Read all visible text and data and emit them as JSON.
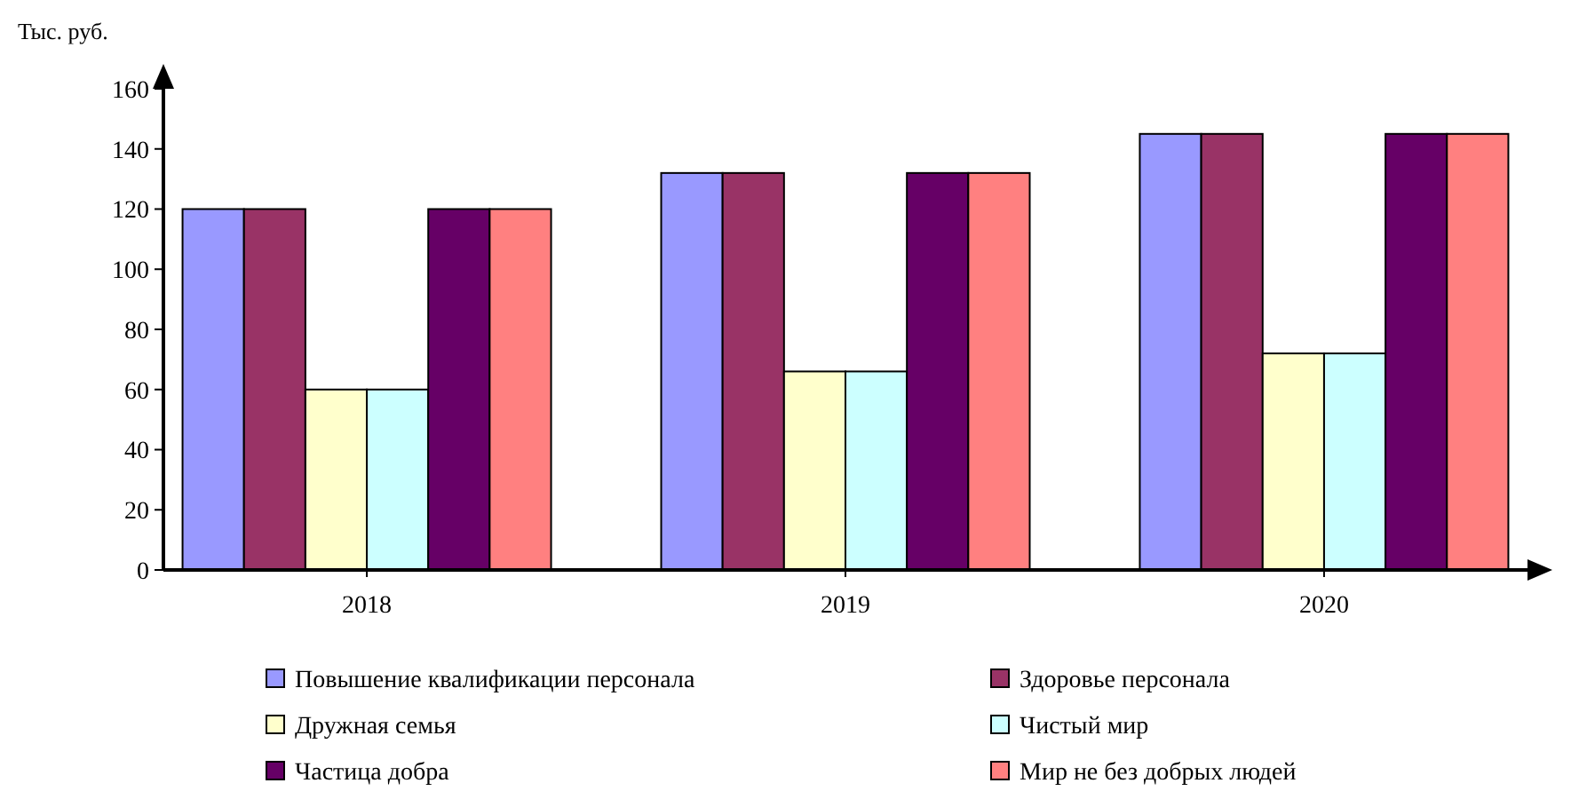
{
  "chart_data": {
    "type": "bar",
    "ylabel": "Тыс. руб.",
    "categories": [
      "2018",
      "2019",
      "2020"
    ],
    "series": [
      {
        "name": "Повышение квалификации персонала",
        "color": "#9999ff",
        "values": [
          120,
          132,
          145
        ]
      },
      {
        "name": "Здоровье персонала",
        "color": "#993366",
        "values": [
          120,
          132,
          145
        ]
      },
      {
        "name": "Дружная семья",
        "color": "#ffffcc",
        "values": [
          60,
          66,
          72
        ]
      },
      {
        "name": "Чистый мир",
        "color": "#ccffff",
        "values": [
          60,
          66,
          72
        ]
      },
      {
        "name": "Частица добра",
        "color": "#660066",
        "values": [
          120,
          132,
          145
        ]
      },
      {
        "name": "Мир не без добрых людей",
        "color": "#ff8080",
        "values": [
          120,
          132,
          145
        ]
      }
    ],
    "ylim": [
      0,
      160
    ],
    "yticks": [
      0,
      20,
      40,
      60,
      80,
      100,
      120,
      140,
      160
    ],
    "grid": false,
    "legend": "bottom"
  }
}
